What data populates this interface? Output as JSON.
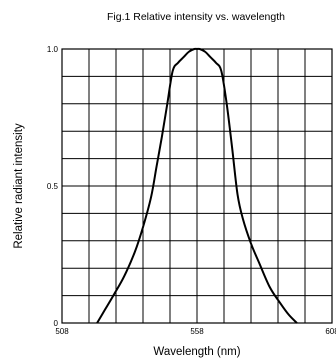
{
  "chart_data": {
    "type": "line",
    "title": "Fig.1 Relative intensity vs. wavelength",
    "xlabel": "Wavelength (nm)",
    "ylabel": "Relative radiant intensity",
    "xlim": [
      508,
      608
    ],
    "ylim": [
      0,
      1.0
    ],
    "xticks": [
      508,
      558,
      608
    ],
    "xtick_labels": [
      "508",
      "558",
      "608"
    ],
    "yticks": [
      0,
      0.5,
      1.0
    ],
    "ytick_labels": [
      "0",
      "0.5",
      "1.0"
    ],
    "grid": true,
    "x_grid_step": 10,
    "y_grid_step": 0.1,
    "line_color": "#000000",
    "series": [
      {
        "x": [
          521,
          524,
          527,
          531,
          535,
          538,
          541,
          543,
          545,
          547,
          549,
          551,
          553,
          555,
          557,
          558,
          559,
          561,
          563,
          565,
          567,
          569,
          571,
          573,
          575,
          578,
          581,
          585,
          589,
          592,
          595
        ],
        "y": [
          0.0,
          0.05,
          0.1,
          0.17,
          0.26,
          0.35,
          0.46,
          0.57,
          0.68,
          0.8,
          0.92,
          0.95,
          0.97,
          0.99,
          1.0,
          1.0,
          1.0,
          0.99,
          0.97,
          0.95,
          0.92,
          0.8,
          0.64,
          0.47,
          0.38,
          0.29,
          0.22,
          0.13,
          0.07,
          0.03,
          0.0
        ]
      }
    ]
  }
}
